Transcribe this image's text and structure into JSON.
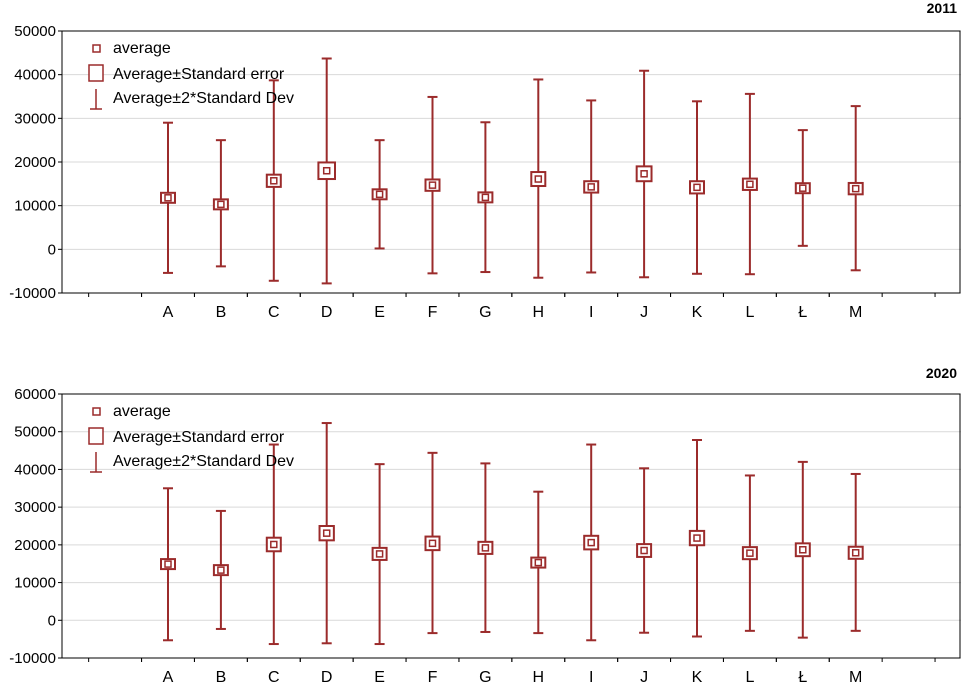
{
  "chart_data": [
    {
      "type": "box",
      "title": "2011",
      "categories": [
        "A",
        "B",
        "C",
        "D",
        "E",
        "F",
        "G",
        "H",
        "I",
        "J",
        "K",
        "L",
        "Ł",
        "M"
      ],
      "ylim": [
        -10000,
        50000
      ],
      "yticks": [
        -10000,
        0,
        10000,
        20000,
        30000,
        40000,
        50000
      ],
      "grid": true,
      "legend_position": "top-left",
      "legend": {
        "mean": "average",
        "se": "Average±Standard error",
        "sd": "Average±2*Standard Dev"
      },
      "series": [
        {
          "name": "average",
          "values": [
            11800,
            10300,
            15700,
            18000,
            12600,
            14700,
            11900,
            16100,
            14300,
            17300,
            14200,
            14900,
            14000,
            13900
          ]
        },
        {
          "name": "se_low",
          "values": [
            10800,
            9500,
            14300,
            16100,
            11700,
            13400,
            10800,
            14500,
            13000,
            15600,
            12800,
            13600,
            13000,
            12600
          ]
        },
        {
          "name": "se_high",
          "values": [
            12800,
            11100,
            17100,
            19900,
            13500,
            16000,
            13000,
            17700,
            15600,
            19000,
            15600,
            16200,
            15000,
            15200
          ]
        },
        {
          "name": "sd_low",
          "values": [
            -5400,
            -3900,
            -7200,
            -7800,
            200,
            -5500,
            -5200,
            -6500,
            -5300,
            -6400,
            -5600,
            -5700,
            800,
            -4800
          ]
        },
        {
          "name": "sd_high",
          "values": [
            29000,
            25000,
            38700,
            43700,
            25000,
            34900,
            29100,
            38900,
            34100,
            40900,
            33900,
            35600,
            27300,
            32800
          ]
        }
      ]
    },
    {
      "type": "box",
      "title": "2020",
      "categories": [
        "A",
        "B",
        "C",
        "D",
        "E",
        "F",
        "G",
        "H",
        "I",
        "J",
        "K",
        "L",
        "Ł",
        "M"
      ],
      "ylim": [
        -10000,
        60000
      ],
      "yticks": [
        -10000,
        0,
        10000,
        20000,
        30000,
        40000,
        50000,
        60000
      ],
      "grid": true,
      "legend_position": "top-left",
      "legend": {
        "mean": "average",
        "se": "Average±Standard error",
        "sd": "Average±2*Standard Dev"
      },
      "series": [
        {
          "name": "average",
          "values": [
            14900,
            13300,
            20100,
            23100,
            17600,
            20400,
            19200,
            15300,
            20600,
            18500,
            21800,
            17800,
            18700,
            17900
          ]
        },
        {
          "name": "se_low",
          "values": [
            13700,
            12300,
            18300,
            21200,
            16000,
            18600,
            17600,
            14100,
            18800,
            16800,
            19900,
            16200,
            17000,
            16300
          ]
        },
        {
          "name": "se_high",
          "values": [
            16100,
            14300,
            21900,
            25000,
            19200,
            22200,
            20800,
            16500,
            22400,
            20200,
            23700,
            19400,
            20400,
            19500
          ]
        },
        {
          "name": "sd_low",
          "values": [
            -5300,
            -2300,
            -6300,
            -6100,
            -6300,
            -3400,
            -3100,
            -3400,
            -5300,
            -3300,
            -4300,
            -2800,
            -4600,
            -2800
          ]
        },
        {
          "name": "sd_high",
          "values": [
            35000,
            29000,
            46600,
            52300,
            41400,
            44400,
            41600,
            34100,
            46600,
            40300,
            47800,
            38400,
            42000,
            38800
          ]
        }
      ]
    }
  ]
}
